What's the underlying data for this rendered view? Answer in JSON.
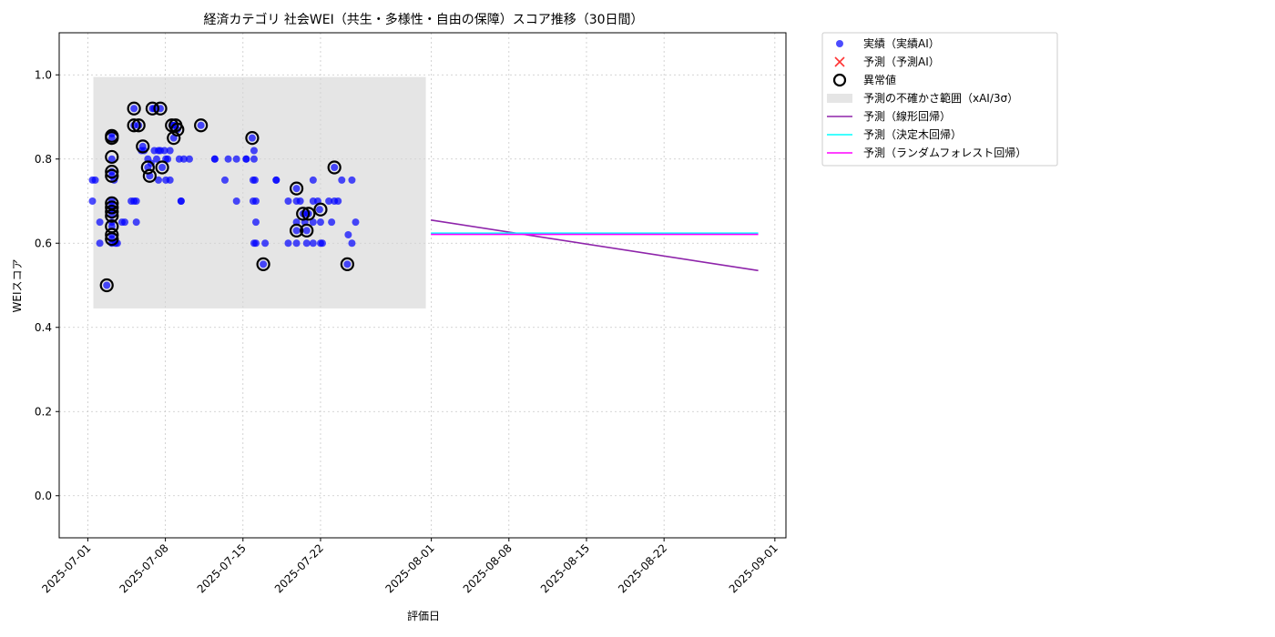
{
  "chart_data": {
    "type": "scatter",
    "title": "経済カテゴリ 社会WEI（共生・多様性・自由の保障）スコア推移（30日間）",
    "xlabel": "評価日",
    "ylabel": "WEIスコア",
    "xlim": [
      "2025-06-28T10:00",
      "2025-09-02T00:00"
    ],
    "ylim": [
      -0.1,
      1.1
    ],
    "grid": true,
    "legend_position": "outside-top-right",
    "x_ticks": [
      "2025-07-01",
      "2025-07-08",
      "2025-07-15",
      "2025-07-22",
      "2025-08-01",
      "2025-08-08",
      "2025-08-15",
      "2025-08-22",
      "2025-09-01"
    ],
    "y_ticks": [
      "0.0",
      "0.2",
      "0.4",
      "0.6",
      "0.8",
      "1.0"
    ],
    "colors": {
      "actual": "#0000ff",
      "forecast_ai": "#ff3333",
      "anomaly": "#000000",
      "uncertainty": "#d3d3d3",
      "linear": "#8e24aa",
      "tree": "#00ffff",
      "forest": "#ff00ff"
    },
    "legend": {
      "actual": "実績（実績AI）",
      "forecast_ai": "予測（予測AI）",
      "anomaly": "異常値",
      "uncertainty": "予測の不確かさ範囲（xAI/3σ）",
      "linear": "予測（線形回帰）",
      "tree": "予測（決定木回帰）",
      "forest": "予測（ランダムフォレスト回帰）"
    },
    "uncertainty_band": {
      "x": [
        "2025-07-01T12:00",
        "2025-07-31T12:00"
      ],
      "y": [
        0.445,
        0.995
      ]
    },
    "actual_points": [
      [
        "2025-07-01T10:00",
        0.75
      ],
      [
        "2025-07-01T10:00",
        0.7
      ],
      [
        "2025-07-01T16:00",
        0.75
      ],
      [
        "2025-07-02T02:00",
        0.65
      ],
      [
        "2025-07-02T02:00",
        0.6
      ],
      [
        "2025-07-02T17:00",
        0.5
      ],
      [
        "2025-07-03T04:00",
        0.86
      ],
      [
        "2025-07-03T04:00",
        0.85
      ],
      [
        "2025-07-03T04:00",
        0.8
      ],
      [
        "2025-07-03T04:00",
        0.77
      ],
      [
        "2025-07-03T04:00",
        0.76
      ],
      [
        "2025-07-03T04:00",
        0.7
      ],
      [
        "2025-07-03T04:00",
        0.69
      ],
      [
        "2025-07-03T04:00",
        0.68
      ],
      [
        "2025-07-03T04:00",
        0.67
      ],
      [
        "2025-07-03T04:00",
        0.65
      ],
      [
        "2025-07-03T04:00",
        0.64
      ],
      [
        "2025-07-03T04:00",
        0.62
      ],
      [
        "2025-07-03T04:00",
        0.61
      ],
      [
        "2025-07-03T04:00",
        0.6
      ],
      [
        "2025-07-03T09:00",
        0.75
      ],
      [
        "2025-07-03T12:00",
        0.6
      ],
      [
        "2025-07-03T16:00",
        0.6
      ],
      [
        "2025-07-04T02:00",
        0.65
      ],
      [
        "2025-07-04T08:00",
        0.65
      ],
      [
        "2025-07-04T22:00",
        0.7
      ],
      [
        "2025-07-05T04:00",
        0.7
      ],
      [
        "2025-07-05T04:00",
        0.92
      ],
      [
        "2025-07-05T04:00",
        0.88
      ],
      [
        "2025-07-05T09:00",
        0.7
      ],
      [
        "2025-07-05T09:00",
        0.65
      ],
      [
        "2025-07-05T14:00",
        0.88
      ],
      [
        "2025-07-05T20:00",
        0.82
      ],
      [
        "2025-07-05T23:00",
        0.83
      ],
      [
        "2025-07-06T02:00",
        0.82
      ],
      [
        "2025-07-06T10:00",
        0.78
      ],
      [
        "2025-07-06T10:00",
        0.8
      ],
      [
        "2025-07-06T14:00",
        0.76
      ],
      [
        "2025-07-06T17:00",
        0.79
      ],
      [
        "2025-07-06T20:00",
        0.92
      ],
      [
        "2025-07-07T00:00",
        0.92
      ],
      [
        "2025-07-07T00:00",
        0.82
      ],
      [
        "2025-07-07T05:00",
        0.8
      ],
      [
        "2025-07-07T09:00",
        0.82
      ],
      [
        "2025-07-07T09:00",
        0.75
      ],
      [
        "2025-07-07T13:00",
        0.82
      ],
      [
        "2025-07-07T13:00",
        0.92
      ],
      [
        "2025-07-07T17:00",
        0.78
      ],
      [
        "2025-07-07T22:00",
        0.82
      ],
      [
        "2025-07-08T01:00",
        0.8
      ],
      [
        "2025-07-08T01:00",
        0.75
      ],
      [
        "2025-07-08T05:00",
        0.8
      ],
      [
        "2025-07-08T10:00",
        0.82
      ],
      [
        "2025-07-08T10:00",
        0.75
      ],
      [
        "2025-07-08T14:00",
        0.88
      ],
      [
        "2025-07-08T18:00",
        0.88
      ],
      [
        "2025-07-08T18:00",
        0.85
      ],
      [
        "2025-07-08T22:00",
        0.88
      ],
      [
        "2025-07-09T02:00",
        0.87
      ],
      [
        "2025-07-09T06:00",
        0.8
      ],
      [
        "2025-07-09T10:00",
        0.7
      ],
      [
        "2025-07-09T10:00",
        0.7
      ],
      [
        "2025-07-09T16:00",
        0.8
      ],
      [
        "2025-07-10T04:00",
        0.8
      ],
      [
        "2025-07-11T05:00",
        0.88
      ],
      [
        "2025-07-12T11:00",
        0.8
      ],
      [
        "2025-07-12T11:00",
        0.8
      ],
      [
        "2025-07-13T09:00",
        0.75
      ],
      [
        "2025-07-13T16:00",
        0.8
      ],
      [
        "2025-07-14T10:00",
        0.7
      ],
      [
        "2025-07-14T10:00",
        0.8
      ],
      [
        "2025-07-15T07:00",
        0.8
      ],
      [
        "2025-07-15T07:00",
        0.8
      ],
      [
        "2025-07-15T20:00",
        0.85
      ],
      [
        "2025-07-16T00:00",
        0.82
      ],
      [
        "2025-07-16T00:00",
        0.8
      ],
      [
        "2025-07-15T22:00",
        0.75
      ],
      [
        "2025-07-16T02:00",
        0.75
      ],
      [
        "2025-07-16T04:00",
        0.65
      ],
      [
        "2025-07-15T22:00",
        0.7
      ],
      [
        "2025-07-16T04:00",
        0.7
      ],
      [
        "2025-07-16T00:00",
        0.6
      ],
      [
        "2025-07-16T04:00",
        0.6
      ],
      [
        "2025-07-16T20:00",
        0.55
      ],
      [
        "2025-07-17T00:00",
        0.6
      ],
      [
        "2025-07-18T00:00",
        0.75
      ],
      [
        "2025-07-18T00:00",
        0.75
      ],
      [
        "2025-07-19T02:00",
        0.7
      ],
      [
        "2025-07-19T02:00",
        0.6
      ],
      [
        "2025-07-19T20:00",
        0.73
      ],
      [
        "2025-07-19T20:00",
        0.7
      ],
      [
        "2025-07-19T20:00",
        0.65
      ],
      [
        "2025-07-19T20:00",
        0.63
      ],
      [
        "2025-07-19T20:00",
        0.6
      ],
      [
        "2025-07-20T04:00",
        0.7
      ],
      [
        "2025-07-20T10:00",
        0.67
      ],
      [
        "2025-07-20T14:00",
        0.65
      ],
      [
        "2025-07-20T18:00",
        0.63
      ],
      [
        "2025-07-20T18:00",
        0.6
      ],
      [
        "2025-07-20T18:00",
        0.67
      ],
      [
        "2025-07-20T22:00",
        0.67
      ],
      [
        "2025-07-21T08:00",
        0.65
      ],
      [
        "2025-07-21T08:00",
        0.75
      ],
      [
        "2025-07-21T08:00",
        0.7
      ],
      [
        "2025-07-21T08:00",
        0.6
      ],
      [
        "2025-07-21T18:00",
        0.7
      ],
      [
        "2025-07-21T22:00",
        0.68
      ],
      [
        "2025-07-22T00:00",
        0.65
      ],
      [
        "2025-07-22T00:00",
        0.6
      ],
      [
        "2025-07-22T04:00",
        0.6
      ],
      [
        "2025-07-22T18:00",
        0.7
      ],
      [
        "2025-07-23T00:00",
        0.65
      ],
      [
        "2025-07-23T06:00",
        0.78
      ],
      [
        "2025-07-23T06:00",
        0.7
      ],
      [
        "2025-07-23T14:00",
        0.7
      ],
      [
        "2025-07-23T22:00",
        0.75
      ],
      [
        "2025-07-24T10:00",
        0.55
      ],
      [
        "2025-07-24T12:00",
        0.62
      ],
      [
        "2025-07-24T20:00",
        0.6
      ],
      [
        "2025-07-24T20:00",
        0.75
      ],
      [
        "2025-07-25T04:00",
        0.65
      ]
    ],
    "anomalies": [
      [
        "2025-07-02T17:00",
        0.5
      ],
      [
        "2025-07-03T04:00",
        0.855
      ],
      [
        "2025-07-03T04:00",
        0.85
      ],
      [
        "2025-07-03T04:00",
        0.805
      ],
      [
        "2025-07-03T04:00",
        0.77
      ],
      [
        "2025-07-03T04:00",
        0.76
      ],
      [
        "2025-07-03T04:00",
        0.695
      ],
      [
        "2025-07-03T04:00",
        0.685
      ],
      [
        "2025-07-03T04:00",
        0.675
      ],
      [
        "2025-07-03T04:00",
        0.665
      ],
      [
        "2025-07-03T04:00",
        0.64
      ],
      [
        "2025-07-03T04:00",
        0.62
      ],
      [
        "2025-07-03T04:00",
        0.61
      ],
      [
        "2025-07-05T04:00",
        0.92
      ],
      [
        "2025-07-05T04:00",
        0.88
      ],
      [
        "2025-07-05T14:00",
        0.88
      ],
      [
        "2025-07-05T23:00",
        0.83
      ],
      [
        "2025-07-06T10:00",
        0.78
      ],
      [
        "2025-07-06T14:00",
        0.76
      ],
      [
        "2025-07-06T20:00",
        0.92
      ],
      [
        "2025-07-07T13:00",
        0.92
      ],
      [
        "2025-07-07T17:00",
        0.78
      ],
      [
        "2025-07-08T14:00",
        0.88
      ],
      [
        "2025-07-08T18:00",
        0.85
      ],
      [
        "2025-07-08T22:00",
        0.88
      ],
      [
        "2025-07-09T02:00",
        0.87
      ],
      [
        "2025-07-11T05:00",
        0.88
      ],
      [
        "2025-07-15T20:00",
        0.85
      ],
      [
        "2025-07-16T20:00",
        0.55
      ],
      [
        "2025-07-19T20:00",
        0.73
      ],
      [
        "2025-07-19T20:00",
        0.63
      ],
      [
        "2025-07-20T10:00",
        0.67
      ],
      [
        "2025-07-20T18:00",
        0.63
      ],
      [
        "2025-07-20T22:00",
        0.67
      ],
      [
        "2025-07-22T00:00",
        0.68
      ],
      [
        "2025-07-23T06:00",
        0.78
      ],
      [
        "2025-07-24T10:00",
        0.55
      ]
    ],
    "forecast_lines": {
      "linear": [
        [
          "2025-07-31T23:00",
          0.655
        ],
        [
          "2025-08-30T12:00",
          0.535
        ]
      ],
      "tree": [
        [
          "2025-07-31T23:00",
          0.624
        ],
        [
          "2025-08-30T12:00",
          0.624
        ]
      ],
      "forest": [
        [
          "2025-07-31T23:00",
          0.621
        ],
        [
          "2025-08-30T12:00",
          0.621
        ]
      ]
    }
  }
}
